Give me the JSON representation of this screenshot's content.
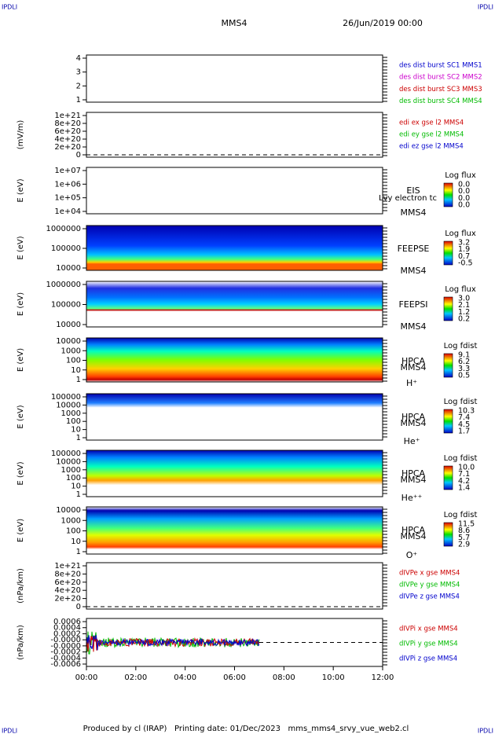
{
  "header": {
    "logo_left": "IPDLI",
    "logo_right": "IPDLI",
    "spacecraft": "MMS4",
    "date": "26/Jun/2019 00:00"
  },
  "panels": [
    {
      "yticks": [
        "4",
        "3",
        "2",
        "1"
      ],
      "labels": [
        {
          "text": "des dist burst SC1 MMS1",
          "color": "#0000cc"
        },
        {
          "text": "des dist burst SC2 MMS2",
          "color": "#cc00cc"
        },
        {
          "text": "des dist burst SC3 MMS3",
          "color": "#cc0000"
        },
        {
          "text": "des dist burst SC4 MMS4",
          "color": "#00bb00"
        }
      ]
    },
    {
      "ylabel": "(mV/m)",
      "yticks": [
        "1e+21",
        "8e+20",
        "6e+20",
        "4e+20",
        "2e+20",
        "0"
      ],
      "labels": [
        {
          "text": "edi ex gse l2 MMS4",
          "color": "#cc0000"
        },
        {
          "text": "edi ey gse l2 MMS4",
          "color": "#00bb00"
        },
        {
          "text": "edi ez gse l2 MMS4",
          "color": "#0000cc"
        }
      ]
    },
    {
      "ylabel": "E (eV)",
      "yticks": [
        "1e+07",
        "1e+06",
        "1e+05",
        "1e+04"
      ],
      "instrument": "EIS",
      "spacecraft": "MMS4",
      "note": "Lvy electron tc",
      "colorbar": {
        "title": "Log flux",
        "ticks": [
          "0.0",
          "0.0",
          "0.0",
          "0.0"
        ]
      }
    },
    {
      "ylabel": "E (eV)",
      "yticks": [
        "1000000",
        "100000",
        "10000"
      ],
      "instrument": "FEEPSE",
      "spacecraft": "MMS4",
      "colorbar": {
        "title": "Log flux",
        "ticks": [
          "3.2",
          "1.9",
          "0.7",
          "-0.5"
        ]
      }
    },
    {
      "ylabel": "E (eV)",
      "yticks": [
        "1000000",
        "100000",
        "10000"
      ],
      "instrument": "FEEPSI",
      "spacecraft": "MMS4",
      "colorbar": {
        "title": "Log flux",
        "ticks": [
          "3.0",
          "2.1",
          "1.2",
          "0.2"
        ]
      }
    },
    {
      "ylabel": "E (eV)",
      "yticks": [
        "10000",
        "1000",
        "100",
        "10",
        "1"
      ],
      "instrument": "HPCA",
      "spacecraft": "MMS4",
      "species": "H⁺",
      "colorbar": {
        "title": "Log fdist",
        "ticks": [
          "9.1",
          "6.2",
          "3.3",
          "0.5"
        ]
      }
    },
    {
      "ylabel": "E (eV)",
      "yticks": [
        "100000",
        "10000",
        "1000",
        "100",
        "10",
        "1"
      ],
      "instrument": "HPCA",
      "spacecraft": "MMS4",
      "species": "He⁺",
      "colorbar": {
        "title": "Log fdist",
        "ticks": [
          "10.3",
          "7.4",
          "4.5",
          "1.7"
        ]
      }
    },
    {
      "ylabel": "E (eV)",
      "yticks": [
        "100000",
        "10000",
        "1000",
        "100",
        "10",
        "1"
      ],
      "instrument": "HPCA",
      "spacecraft": "MMS4",
      "species": "He⁺⁺",
      "colorbar": {
        "title": "Log fdist",
        "ticks": [
          "10.0",
          "7.1",
          "4.2",
          "1.4"
        ]
      }
    },
    {
      "ylabel": "E (eV)",
      "yticks": [
        "10000",
        "1000",
        "100",
        "10",
        "1"
      ],
      "instrument": "HPCA",
      "spacecraft": "MMS4",
      "species": "O⁺",
      "colorbar": {
        "title": "Log fdist",
        "ticks": [
          "11.5",
          "8.6",
          "5.7",
          "2.9"
        ]
      }
    },
    {
      "ylabel": "(nPa/km)",
      "yticks": [
        "1e+21",
        "8e+20",
        "6e+20",
        "4e+20",
        "2e+20",
        "0"
      ],
      "labels": [
        {
          "text": "dIVPe x gse MMS4",
          "color": "#cc0000"
        },
        {
          "text": "dIVPe y gse MMS4",
          "color": "#00bb00"
        },
        {
          "text": "dIVPe z gse MMS4",
          "color": "#0000cc"
        }
      ]
    },
    {
      "ylabel": "(nPa/km)",
      "yticks": [
        "0.0006",
        "0.0004",
        "0.0002",
        "-0.0000",
        "-0.0000",
        "-0.0002",
        "-0.0004",
        "-0.0006"
      ],
      "labels": [
        {
          "text": "dIVPi x gse MMS4",
          "color": "#cc0000"
        },
        {
          "text": "dIVPi y gse MMS4",
          "color": "#00bb00"
        },
        {
          "text": "dIVPi z gse MMS4",
          "color": "#0000cc"
        }
      ]
    }
  ],
  "xticks": [
    "00:00",
    "02:00",
    "04:00",
    "06:00",
    "08:00",
    "10:00",
    "12:00"
  ],
  "footer": {
    "logo_left": "IPDLI",
    "logo_right": "IPDLI",
    "text": "Produced by cl (IRAP)   Printing date: 01/Dec/2023   mms_mms4_srvy_vue_web2.cl"
  }
}
